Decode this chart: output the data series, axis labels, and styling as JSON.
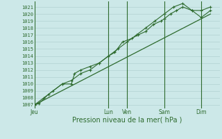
{
  "background_color": "#cce8e8",
  "grid_color": "#aacccc",
  "line_color": "#2d6a2d",
  "marker_color": "#2d6a2d",
  "ylabel_ticks": [
    1007,
    1008,
    1009,
    1010,
    1011,
    1012,
    1013,
    1014,
    1015,
    1016,
    1017,
    1018,
    1019,
    1020,
    1021
  ],
  "ylim": [
    1006.5,
    1021.8
  ],
  "xlabel": "Pression niveau de la mer( hPa )",
  "day_labels": [
    "Jeu",
    "Lun",
    "Ven",
    "Sam",
    "Dim"
  ],
  "day_positions": [
    0,
    48,
    60,
    84,
    108
  ],
  "xlim": [
    0,
    120
  ],
  "series1_x": [
    0,
    3,
    9,
    18,
    24,
    26,
    30,
    36,
    42,
    48,
    52,
    57,
    63,
    67,
    72,
    77,
    82,
    84,
    88,
    92,
    96,
    102,
    108,
    114
  ],
  "series1_y": [
    1007,
    1007.2,
    1008.5,
    1010,
    1010,
    1011.5,
    1012,
    1012.5,
    1013,
    1014,
    1014.5,
    1016,
    1016.5,
    1017,
    1017.5,
    1018.5,
    1019,
    1019.3,
    1020,
    1020.5,
    1021,
    1020.5,
    1019.5,
    1020.5
  ],
  "series2_x": [
    0,
    6,
    12,
    18,
    24,
    30,
    36,
    42,
    48,
    54,
    60,
    66,
    72,
    78,
    84,
    90,
    96,
    102,
    108,
    114
  ],
  "series2_y": [
    1007,
    1008,
    1009,
    1010,
    1010.5,
    1011.5,
    1012,
    1013,
    1014,
    1015,
    1016,
    1017,
    1018,
    1019,
    1020,
    1021,
    1021.5,
    1020.5,
    1020.5,
    1021
  ],
  "trend_x": [
    0,
    114
  ],
  "trend_y": [
    1007,
    1020
  ],
  "vline_positions": [
    0,
    48,
    60,
    84,
    108
  ]
}
